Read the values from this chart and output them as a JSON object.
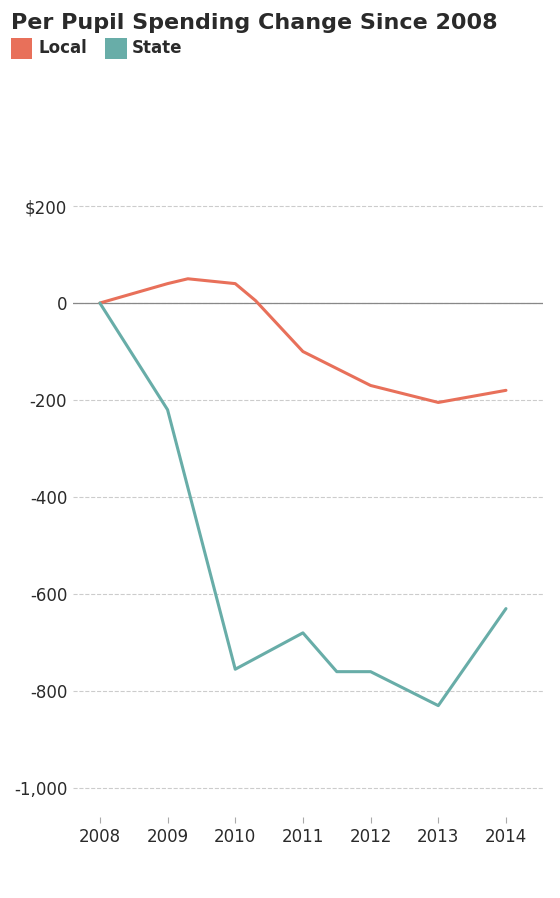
{
  "title": "Per Pupil Spending Change Since 2008",
  "legend_local": "Local",
  "legend_state": "State",
  "local_x": [
    2008,
    2009,
    2009.3,
    2010,
    2010.3,
    2011,
    2012,
    2013,
    2014
  ],
  "local_y": [
    0,
    40,
    50,
    40,
    5,
    -100,
    -170,
    -205,
    -180
  ],
  "state_x": [
    2008,
    2009,
    2010,
    2011,
    2011.5,
    2012,
    2013,
    2014
  ],
  "state_y": [
    0,
    -220,
    -755,
    -680,
    -760,
    -760,
    -830,
    -630
  ],
  "local_color": "#E8705A",
  "state_color": "#68ADA8",
  "zero_line_color": "#888888",
  "grid_color": "#CCCCCC",
  "background_color": "#FFFFFF",
  "title_color": "#2A2A2A",
  "text_color": "#2A2A2A",
  "ylim": [
    -1060,
    310
  ],
  "yticks": [
    200,
    0,
    -200,
    -400,
    -600,
    -800,
    -1000
  ],
  "ytick_labels": [
    "$200",
    "0",
    "-200",
    "-400",
    "-600",
    "-800",
    "-1,000"
  ],
  "xlim": [
    2007.6,
    2014.55
  ],
  "xticks": [
    2008,
    2009,
    2010,
    2011,
    2012,
    2013,
    2014
  ],
  "line_width": 2.2,
  "title_fontsize": 16,
  "legend_fontsize": 12,
  "tick_fontsize": 12
}
